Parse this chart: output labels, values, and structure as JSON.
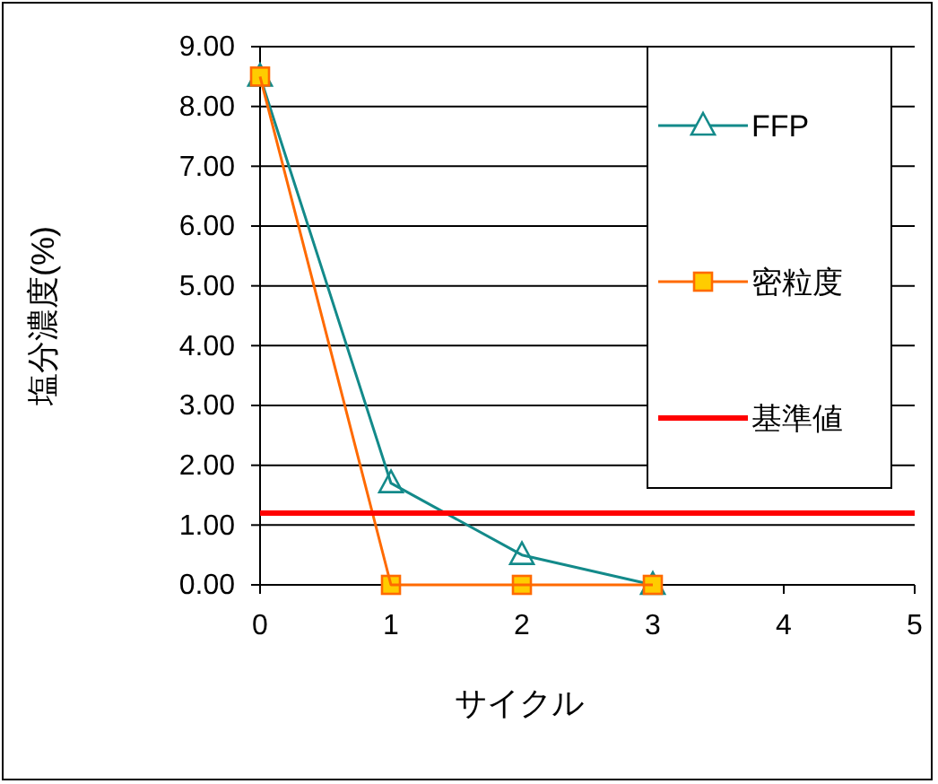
{
  "chart_data": {
    "type": "line",
    "xlabel": "サイクル",
    "ylabel": "塩分濃度(%)",
    "x": [
      0,
      1,
      2,
      3
    ],
    "series": [
      {
        "name": "FFP",
        "color": "#138a8a",
        "values": [
          8.5,
          1.7,
          0.5,
          0
        ],
        "marker": "triangle"
      },
      {
        "name": "密粒度",
        "color": "#ff6a00",
        "values": [
          8.5,
          0,
          0,
          0
        ],
        "marker": "square"
      },
      {
        "name": "基準値",
        "color": "#ff0000",
        "x": [
          0,
          5
        ],
        "values": [
          1.2,
          1.2
        ],
        "marker": "none"
      }
    ],
    "xlim": [
      0,
      5
    ],
    "xticks": [
      0,
      1,
      2,
      3,
      4,
      5
    ],
    "ylim": [
      0,
      9
    ],
    "yticks": [
      {
        "value": 0,
        "label": "0.00"
      },
      {
        "value": 1,
        "label": "1.00"
      },
      {
        "value": 2,
        "label": "2.00"
      },
      {
        "value": 3,
        "label": "3.00"
      },
      {
        "value": 4,
        "label": "4.00"
      },
      {
        "value": 5,
        "label": "5.00"
      },
      {
        "value": 6,
        "label": "6.00"
      },
      {
        "value": 7,
        "label": "7.00"
      },
      {
        "value": 8,
        "label": "8.00"
      },
      {
        "value": 9,
        "label": "9.00"
      }
    ],
    "grid": "y",
    "legend": "top right"
  }
}
